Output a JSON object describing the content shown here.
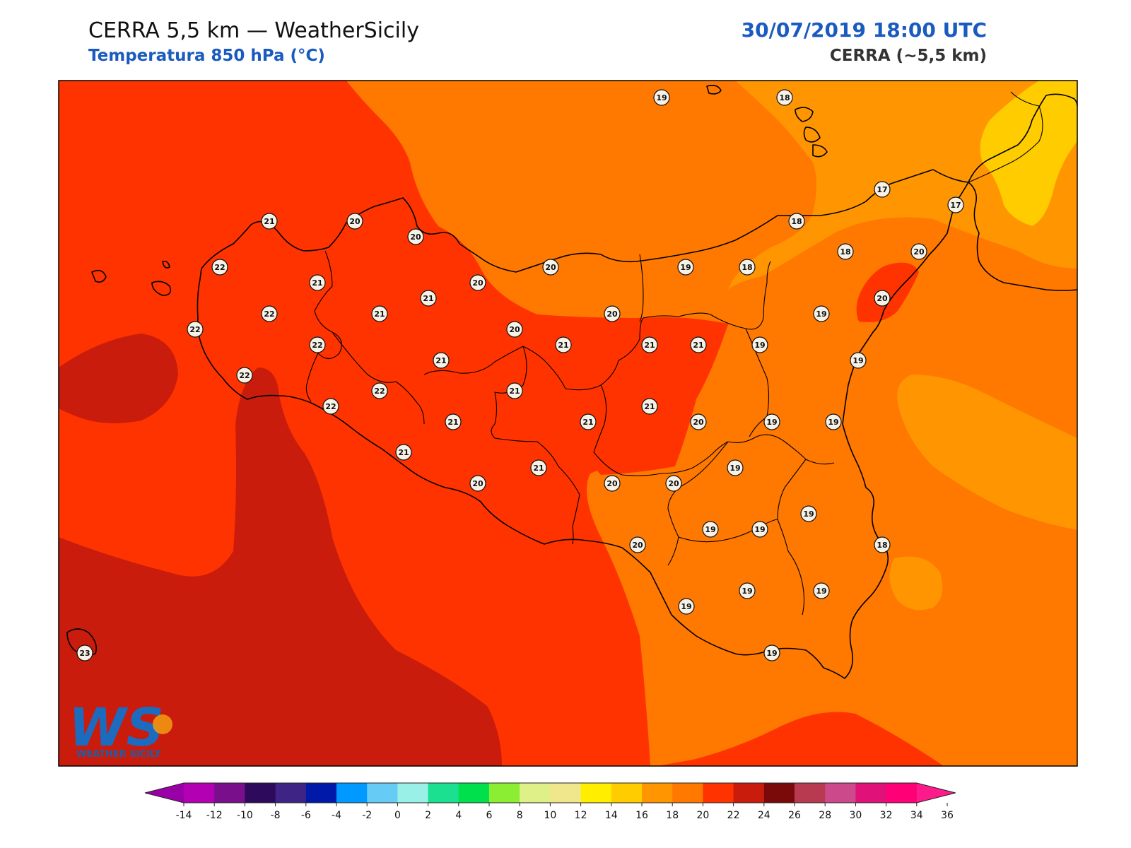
{
  "header": {
    "title": "CERRA 5,5 km — WeatherSicily",
    "subtitle": "Temperatura 850 hPa (°C)",
    "datetime": "30/07/2019 18:00 UTC",
    "model": "CERRA (~5,5 km)"
  },
  "logo": {
    "letters": "WS",
    "name": "WEATHER SICILY"
  },
  "colors": {
    "t23_25": "#c91c0d",
    "t22_24": "#ff3300",
    "t20_22": "#ff7800",
    "t18_20": "#ff9500",
    "t16_18": "#ffcc00",
    "station_fill": "#f7f2e8",
    "coast": "#000000"
  },
  "stations": [
    {
      "v": "19"
    },
    {
      "v": "18"
    },
    {
      "v": "21"
    },
    {
      "v": "20"
    },
    {
      "v": "20"
    },
    {
      "v": "17"
    },
    {
      "v": "17"
    },
    {
      "v": "18"
    },
    {
      "v": "22"
    },
    {
      "v": "21"
    },
    {
      "v": "20"
    },
    {
      "v": "20"
    },
    {
      "v": "19"
    },
    {
      "v": "18"
    },
    {
      "v": "18"
    },
    {
      "v": "20"
    },
    {
      "v": "22"
    },
    {
      "v": "21"
    },
    {
      "v": "21"
    },
    {
      "v": "20"
    },
    {
      "v": "20"
    },
    {
      "v": "19"
    },
    {
      "v": "22"
    },
    {
      "v": "20"
    },
    {
      "v": "21"
    },
    {
      "v": "21"
    },
    {
      "v": "21"
    },
    {
      "v": "19"
    },
    {
      "v": "22"
    },
    {
      "v": "21"
    },
    {
      "v": "19"
    },
    {
      "v": "22"
    },
    {
      "v": "22"
    },
    {
      "v": "21"
    },
    {
      "v": "22"
    },
    {
      "v": "21"
    },
    {
      "v": "21"
    },
    {
      "v": "21"
    },
    {
      "v": "20"
    },
    {
      "v": "19"
    },
    {
      "v": "19"
    },
    {
      "v": "21"
    },
    {
      "v": "19"
    },
    {
      "v": "21"
    },
    {
      "v": "20"
    },
    {
      "v": "20"
    },
    {
      "v": "20"
    },
    {
      "v": "19"
    },
    {
      "v": "19"
    },
    {
      "v": "19"
    },
    {
      "v": "18"
    },
    {
      "v": "20"
    },
    {
      "v": "19"
    },
    {
      "v": "19"
    },
    {
      "v": "23"
    },
    {
      "v": "19"
    },
    {
      "v": "19"
    }
  ],
  "colorbar": {
    "unit": "°C",
    "ticks": [
      "-14",
      "-12",
      "-10",
      "-8",
      "-6",
      "-4",
      "-2",
      "0",
      "2",
      "4",
      "6",
      "8",
      "10",
      "12",
      "14",
      "16",
      "18",
      "20",
      "22",
      "24",
      "26",
      "28",
      "30",
      "32",
      "34",
      "36"
    ],
    "colors": [
      "#b300b3",
      "#7a0f8c",
      "#2e0a5c",
      "#3d2485",
      "#0019a8",
      "#0099ff",
      "#66ccf5",
      "#99f0e6",
      "#1ae08f",
      "#00e04d",
      "#8cee33",
      "#e0f088",
      "#f0e68c",
      "#ffee00",
      "#ffcc00",
      "#ff9500",
      "#ff7800",
      "#ff3300",
      "#c91c0d",
      "#7a0a0a",
      "#b83a50",
      "#cc4a8c",
      "#e0127a",
      "#ff0077"
    ],
    "under_color": "#9900a8",
    "over_color": "#ff1a8c"
  }
}
